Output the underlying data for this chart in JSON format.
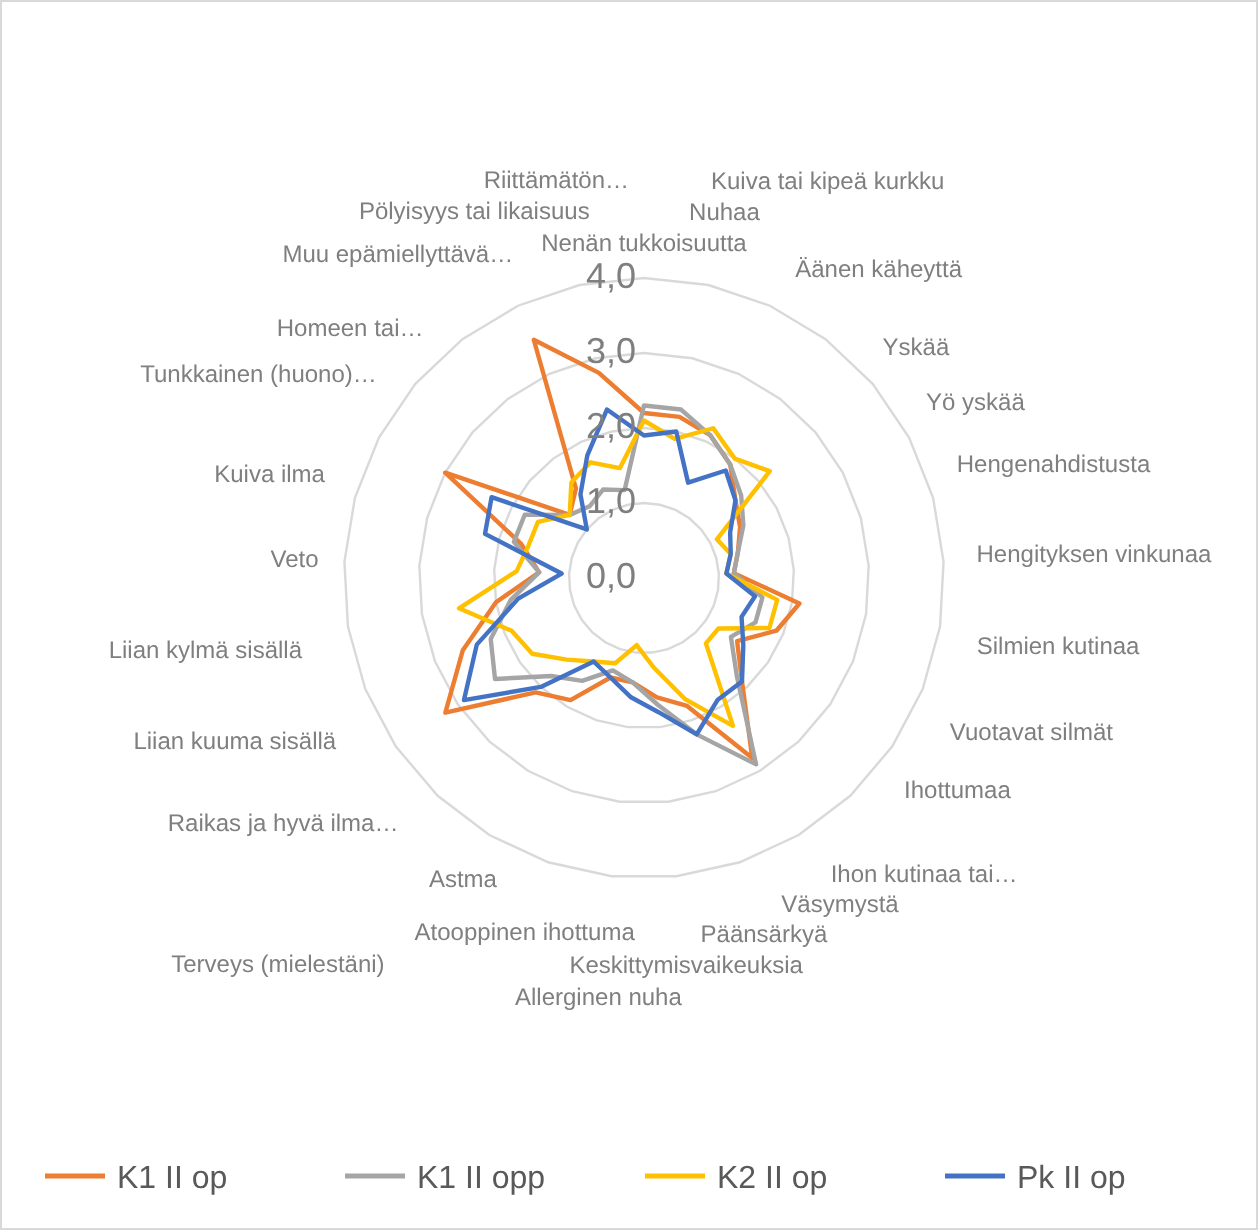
{
  "chart_data": {
    "type": "radar",
    "categories": [
      "Nenän tukkoisuutta",
      "Nuhaa",
      "Kuiva tai kipeä kurkku",
      "Äänen käheyttä",
      "Yskää",
      "Yö yskää",
      "Hengenahdistusta",
      "Hengityksen vinkunaa",
      "Silmien kutinaa",
      "Vuotavat silmät",
      "Ihottumaa",
      "Ihon kutinaa tai…",
      "Väsymystä",
      "Päänsärkyä",
      "Keskittymisvaikeuksia",
      "Allerginen nuha",
      "Atooppinen ihottuma",
      "Astma",
      "Terveys (mielestäni)",
      "Raikas ja hyvä ilma…",
      "Liian kuuma sisällä",
      "Liian kylmä sisällä",
      "Veto",
      "Kuiva ilma",
      "Tunkkainen (huono)…",
      "Homeen tai…",
      "Muu epämiellyttävä…",
      "Pölyisyys tai likaisuus",
      "Riittämätön…"
    ],
    "series": [
      {
        "name": "K1 II op",
        "color": "#ed7d31",
        "values": [
          2.2,
          2.2,
          2.1,
          1.9,
          1.6,
          1.45,
          1.3,
          1.2,
          2.1,
          1.9,
          1.5,
          1.9,
          2.8,
          1.8,
          1.6,
          1.4,
          1.4,
          1.9,
          2.1,
          3.2,
          2.6,
          2.0,
          1.4,
          1.7,
          3.0,
          1.3,
          1.5,
          3.5,
          2.8
        ]
      },
      {
        "name": "K1 II opp",
        "color": "#a5a5a5",
        "values": [
          2.3,
          2.3,
          2.1,
          1.9,
          1.7,
          1.5,
          1.3,
          1.2,
          1.6,
          1.6,
          1.4,
          1.8,
          2.9,
          2.2,
          1.7,
          1.4,
          1.3,
          1.6,
          1.8,
          2.4,
          2.2,
          1.8,
          1.4,
          1.8,
          1.8,
          1.3,
          1.2,
          1.3,
          1.2
        ]
      },
      {
        "name": "K2 II op",
        "color": "#ffc000",
        "values": [
          2.1,
          1.9,
          2.2,
          2.0,
          2.2,
          1.1,
          1.2,
          1.1,
          1.8,
          1.8,
          1.2,
          1.2,
          2.3,
          1.7,
          1.2,
          0.9,
          1.2,
          1.3,
          1.5,
          1.8,
          1.9,
          2.5,
          1.7,
          1.6,
          1.6,
          1.3,
          1.6,
          1.7,
          1.5
        ]
      },
      {
        "name": "Pk II op",
        "color": "#4472c4",
        "values": [
          1.9,
          2.0,
          1.4,
          1.8,
          1.6,
          1.3,
          1.2,
          1.1,
          1.5,
          1.4,
          1.6,
          1.9,
          1.9,
          2.2,
          1.8,
          1.6,
          1.4,
          1.3,
          2.0,
          2.9,
          2.4,
          1.7,
          1.1,
          2.2,
          2.3,
          1.0,
          1.4,
          1.8,
          2.3
        ]
      }
    ],
    "ylim": [
      0,
      4
    ],
    "yticks": [
      {
        "value": 0,
        "label": "0,0"
      },
      {
        "value": 1,
        "label": "1,0"
      },
      {
        "value": 2,
        "label": "2,0"
      },
      {
        "value": 3,
        "label": "3,0"
      },
      {
        "value": 4,
        "label": "4,0"
      }
    ],
    "grid": true,
    "legend": "bottom"
  }
}
